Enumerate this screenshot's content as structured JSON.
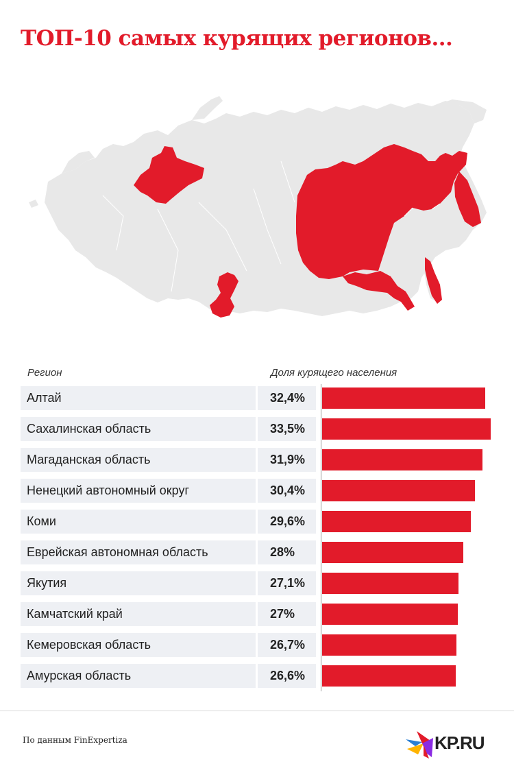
{
  "title": "ТОП-10 самых курящих регионов...",
  "columns": {
    "region": "Регион",
    "share": "Доля курящего населения"
  },
  "source": "По данным FinExpertiza",
  "logo": "KP.RU",
  "colors": {
    "accent": "#e21b2a",
    "map_base": "#e8e8e8",
    "row_bg": "#eef0f4"
  },
  "chart_data": {
    "type": "bar",
    "orientation": "horizontal",
    "categories": [
      "Алтай",
      "Сахалинская область",
      "Магаданская область",
      "Ненецкий автономный округ",
      "Коми",
      "Еврейская автономная область",
      "Якутия",
      "Камчатский край",
      "Кемеровская область",
      "Амурская область"
    ],
    "values": [
      32.4,
      33.5,
      31.9,
      30.4,
      29.6,
      28,
      27.1,
      27,
      26.7,
      26.6
    ],
    "labels": [
      "32,4%",
      "33,5%",
      "31,9%",
      "30,4%",
      "29,6%",
      "28%",
      "27,1%",
      "27%",
      "26,7%",
      "26,6%"
    ],
    "xlim": [
      0,
      33.5
    ],
    "grid": false,
    "legend": "none"
  }
}
